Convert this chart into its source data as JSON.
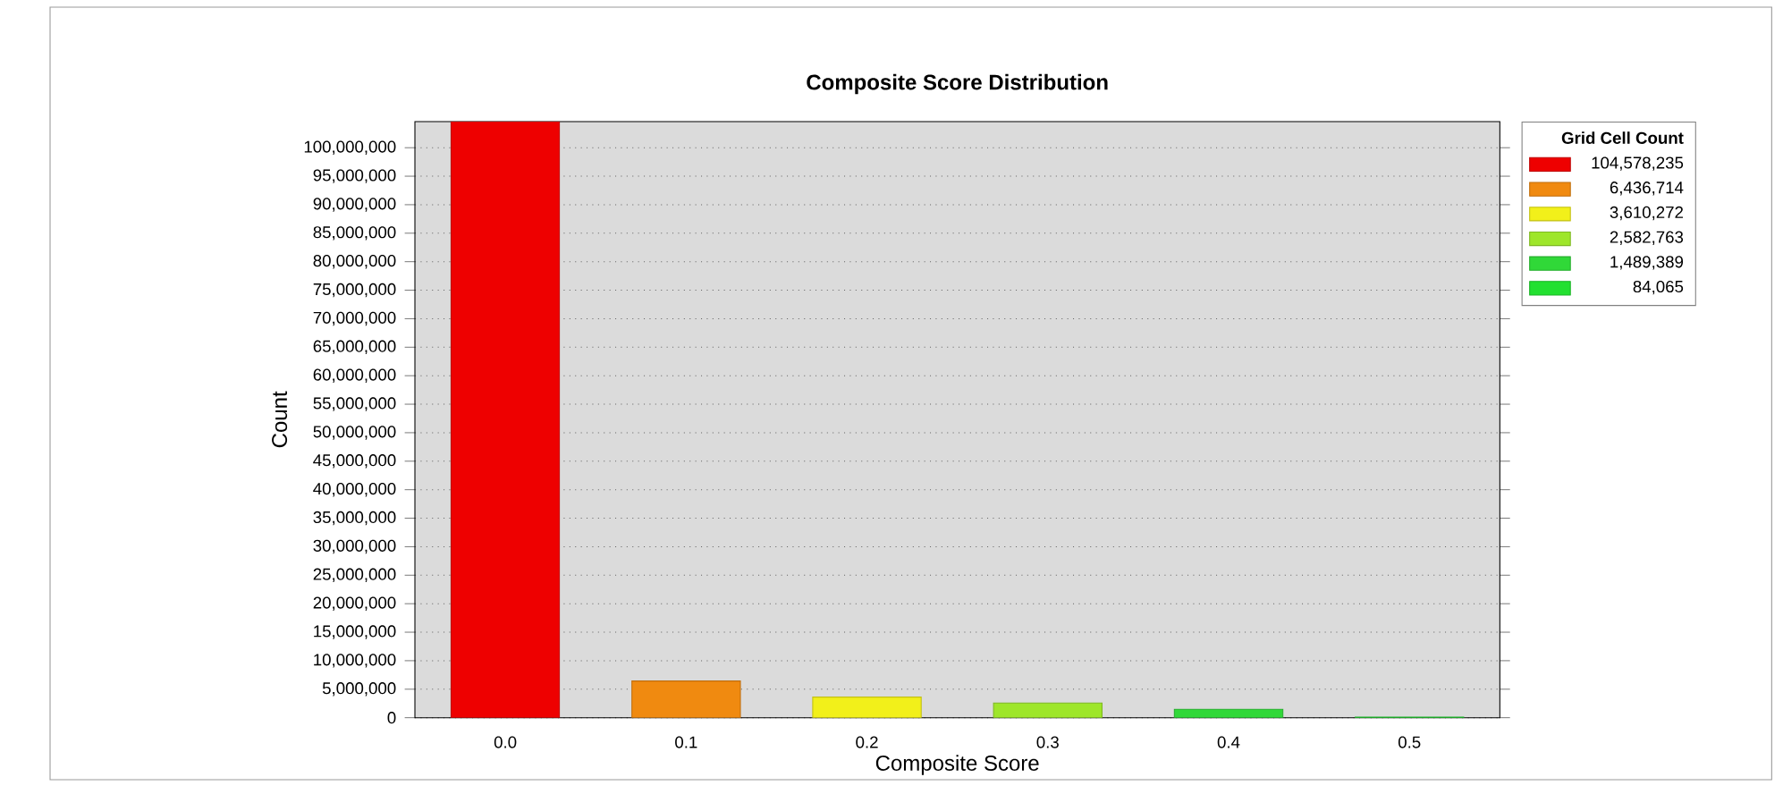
{
  "chart_data": {
    "type": "bar",
    "title": "Composite Score Distribution",
    "xlabel": "Composite Score",
    "ylabel": "Count",
    "legend_title": "Grid Cell Count",
    "categories": [
      "0.0",
      "0.1",
      "0.2",
      "0.3",
      "0.4",
      "0.5"
    ],
    "series": [
      {
        "name": "104,578,235",
        "color": "#ee0000",
        "values": [
          104578235,
          null,
          null,
          null,
          null,
          null
        ]
      },
      {
        "name": "6,436,714",
        "color": "#f08a10",
        "values": [
          null,
          6436714,
          null,
          null,
          null,
          null
        ]
      },
      {
        "name": "3,610,272",
        "color": "#f2f01a",
        "values": [
          null,
          null,
          3610272,
          null,
          null,
          null
        ]
      },
      {
        "name": "2,582,763",
        "color": "#9ee62a",
        "values": [
          null,
          null,
          null,
          2582763,
          null,
          null
        ]
      },
      {
        "name": "1,489,389",
        "color": "#30d838",
        "values": [
          null,
          null,
          null,
          null,
          1489389,
          null
        ]
      },
      {
        "name": "84,065",
        "color": "#22e030",
        "values": [
          null,
          null,
          null,
          null,
          null,
          84065
        ]
      }
    ],
    "ylim": [
      0,
      104578235
    ],
    "yticks": [
      {
        "value": 0,
        "label": "0"
      },
      {
        "value": 5000000,
        "label": "5,000,000"
      },
      {
        "value": 10000000,
        "label": "10,000,000"
      },
      {
        "value": 15000000,
        "label": "15,000,000"
      },
      {
        "value": 20000000,
        "label": "20,000,000"
      },
      {
        "value": 25000000,
        "label": "25,000,000"
      },
      {
        "value": 30000000,
        "label": "30,000,000"
      },
      {
        "value": 35000000,
        "label": "35,000,000"
      },
      {
        "value": 40000000,
        "label": "40,000,000"
      },
      {
        "value": 45000000,
        "label": "45,000,000"
      },
      {
        "value": 50000000,
        "label": "50,000,000"
      },
      {
        "value": 55000000,
        "label": "55,000,000"
      },
      {
        "value": 60000000,
        "label": "60,000,000"
      },
      {
        "value": 65000000,
        "label": "65,000,000"
      },
      {
        "value": 70000000,
        "label": "70,000,000"
      },
      {
        "value": 75000000,
        "label": "75,000,000"
      },
      {
        "value": 80000000,
        "label": "80,000,000"
      },
      {
        "value": 85000000,
        "label": "85,000,000"
      },
      {
        "value": 90000000,
        "label": "90,000,000"
      },
      {
        "value": 95000000,
        "label": "95,000,000"
      },
      {
        "value": 100000000,
        "label": "100,000,000"
      }
    ],
    "grid": "y",
    "legend": "top right"
  }
}
